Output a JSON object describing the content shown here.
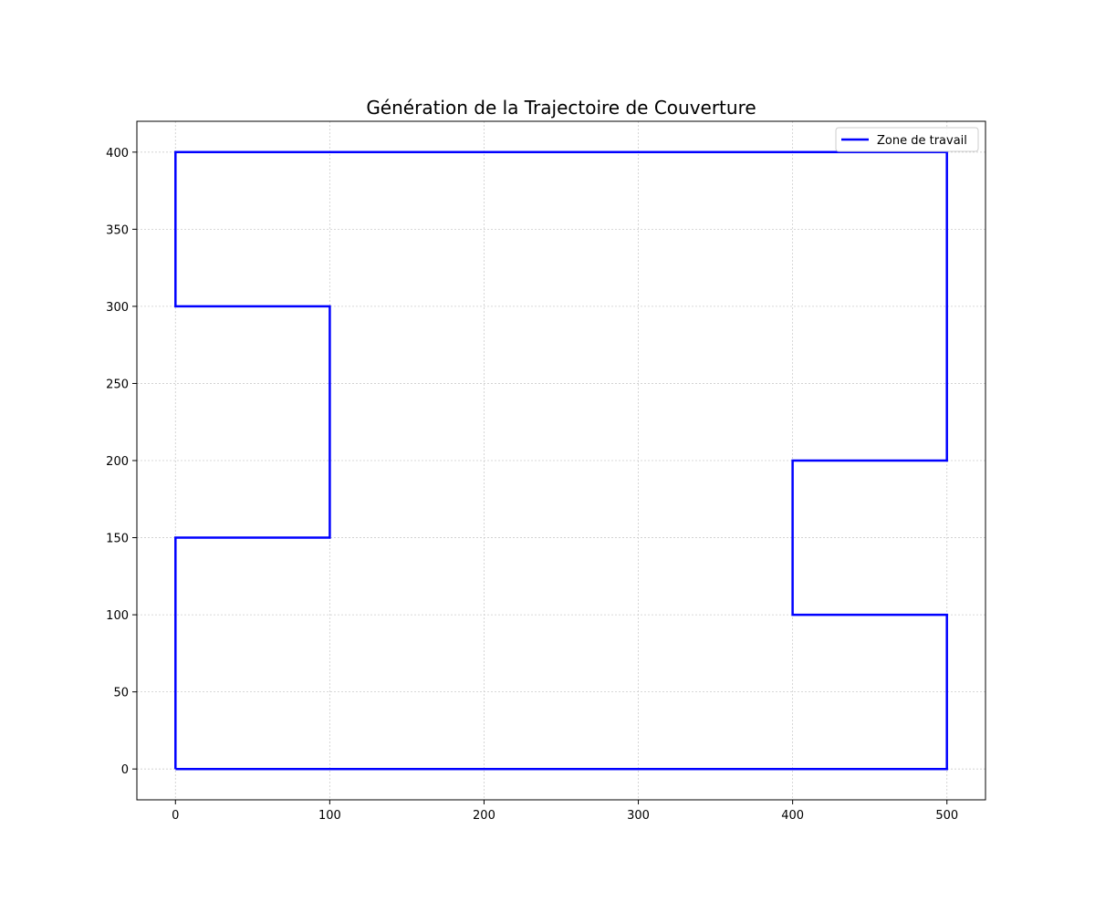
{
  "chart_data": {
    "type": "line",
    "title": "Génération de la Trajectoire de Couverture",
    "xlabel": "",
    "ylabel": "",
    "xlim": [
      -25,
      525
    ],
    "ylim": [
      -20,
      420
    ],
    "x_ticks": [
      0,
      100,
      200,
      300,
      400,
      500
    ],
    "y_ticks": [
      0,
      50,
      100,
      150,
      200,
      250,
      300,
      350,
      400
    ],
    "x_tick_labels": [
      "0",
      "100",
      "200",
      "300",
      "400",
      "500"
    ],
    "y_tick_labels": [
      "0",
      "50",
      "100",
      "150",
      "200",
      "250",
      "300",
      "350",
      "400"
    ],
    "grid": true,
    "legend_position": "top-right",
    "series": [
      {
        "name": "Zone de travail",
        "color": "#0000ff",
        "x": [
          0,
          500,
          500,
          400,
          400,
          500,
          500,
          0,
          0,
          100,
          100,
          0,
          0
        ],
        "y": [
          0,
          0,
          100,
          100,
          200,
          200,
          400,
          400,
          300,
          300,
          150,
          150,
          0
        ]
      }
    ]
  }
}
